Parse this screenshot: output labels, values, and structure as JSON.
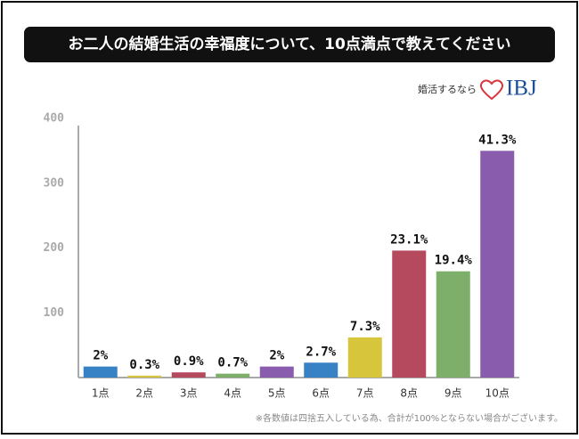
{
  "logo": {
    "tagline": "婚活するなら",
    "brand": "IBJ"
  },
  "chart_data": {
    "type": "bar",
    "title": "お二人の結婚生活の幸福度について、10点満点で教えてください",
    "categories": [
      "1点",
      "2点",
      "3点",
      "4点",
      "5点",
      "6点",
      "7点",
      "8点",
      "9点",
      "10点"
    ],
    "values": [
      17,
      3,
      8,
      6,
      17,
      23,
      62,
      196,
      164,
      350
    ],
    "value_labels": [
      "2%",
      "0.3%",
      "0.9%",
      "0.7%",
      "2%",
      "2.7%",
      "7.3%",
      "23.1%",
      "19.4%",
      "41.3%"
    ],
    "colors": [
      "#3682c4",
      "#d7c63c",
      "#b54a5e",
      "#7daf6b",
      "#8a5cae",
      "#3682c4",
      "#d7c63c",
      "#b54a5e",
      "#7daf6b",
      "#8a5cae"
    ],
    "ylim": [
      0,
      400
    ],
    "yticks": [
      100,
      200,
      300,
      400
    ],
    "grid": false,
    "note": "※各数値は四捨五入している為、合計が100%とならない場合がございます。"
  }
}
